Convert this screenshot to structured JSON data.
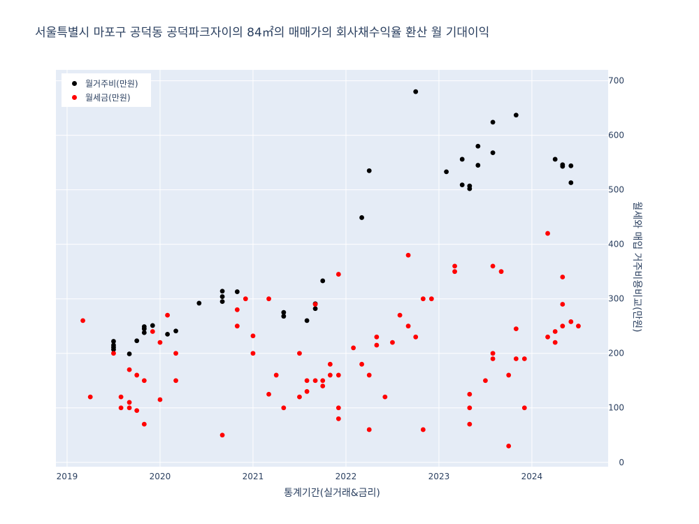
{
  "chart_data": {
    "type": "scatter",
    "title": "서울특별시 마포구 공덕동 공덕파크자이의 84㎡의 매매가의 회사채수익율 환산 월 기대이익",
    "xlabel": "통계기간(실거래&금리)",
    "ylabel": "월세와 매입 거주비용비교(만원)",
    "xlim": [
      2018.88,
      2024.82
    ],
    "ylim": [
      -8,
      720
    ],
    "x_ticks": [
      2019,
      2020,
      2021,
      2022,
      2023,
      2024
    ],
    "x_tick_labels": [
      "2019",
      "2020",
      "2021",
      "2022",
      "2023",
      "2024"
    ],
    "y_ticks": [
      0,
      100,
      200,
      300,
      400,
      500,
      600,
      700
    ],
    "y_tick_labels": [
      "0",
      "100",
      "200",
      "300",
      "400",
      "500",
      "600",
      "700"
    ],
    "legend_position": "top-left",
    "series": [
      {
        "name": "월거주비(만원)",
        "color": "#000000",
        "points": [
          [
            2019.5,
            222
          ],
          [
            2019.5,
            215
          ],
          [
            2019.5,
            211
          ],
          [
            2019.5,
            207
          ],
          [
            2019.67,
            199
          ],
          [
            2019.75,
            223
          ],
          [
            2019.83,
            249
          ],
          [
            2019.83,
            245
          ],
          [
            2019.83,
            238
          ],
          [
            2019.92,
            251
          ],
          [
            2020.08,
            235
          ],
          [
            2020.17,
            241
          ],
          [
            2020.42,
            292
          ],
          [
            2020.67,
            314
          ],
          [
            2020.67,
            304
          ],
          [
            2020.67,
            295
          ],
          [
            2020.83,
            313
          ],
          [
            2021.33,
            275
          ],
          [
            2021.33,
            268
          ],
          [
            2021.58,
            260
          ],
          [
            2021.67,
            291
          ],
          [
            2021.67,
            282
          ],
          [
            2021.75,
            333
          ],
          [
            2022.17,
            449
          ],
          [
            2022.25,
            535
          ],
          [
            2022.75,
            680
          ],
          [
            2023.08,
            533
          ],
          [
            2023.25,
            556
          ],
          [
            2023.25,
            509
          ],
          [
            2023.33,
            507
          ],
          [
            2023.33,
            502
          ],
          [
            2023.42,
            580
          ],
          [
            2023.42,
            545
          ],
          [
            2023.58,
            624
          ],
          [
            2023.58,
            568
          ],
          [
            2023.83,
            637
          ],
          [
            2024.25,
            556
          ],
          [
            2024.33,
            546
          ],
          [
            2024.33,
            543
          ],
          [
            2024.42,
            544
          ],
          [
            2024.42,
            513
          ]
        ]
      },
      {
        "name": "월세금(만원)",
        "color": "#ff0000",
        "points": [
          [
            2019.17,
            260
          ],
          [
            2019.25,
            120
          ],
          [
            2019.5,
            200
          ],
          [
            2019.58,
            120
          ],
          [
            2019.58,
            100
          ],
          [
            2019.67,
            170
          ],
          [
            2019.67,
            110
          ],
          [
            2019.67,
            100
          ],
          [
            2019.75,
            160
          ],
          [
            2019.75,
            95
          ],
          [
            2019.83,
            150
          ],
          [
            2019.83,
            70
          ],
          [
            2019.92,
            240
          ],
          [
            2020.0,
            220
          ],
          [
            2020.0,
            115
          ],
          [
            2020.08,
            270
          ],
          [
            2020.17,
            200
          ],
          [
            2020.17,
            150
          ],
          [
            2020.67,
            50
          ],
          [
            2020.83,
            280
          ],
          [
            2020.83,
            250
          ],
          [
            2020.92,
            300
          ],
          [
            2021.0,
            232
          ],
          [
            2021.0,
            200
          ],
          [
            2021.17,
            300
          ],
          [
            2021.17,
            125
          ],
          [
            2021.25,
            160
          ],
          [
            2021.33,
            100
          ],
          [
            2021.5,
            200
          ],
          [
            2021.5,
            120
          ],
          [
            2021.58,
            150
          ],
          [
            2021.58,
            130
          ],
          [
            2021.67,
            290
          ],
          [
            2021.67,
            150
          ],
          [
            2021.75,
            150
          ],
          [
            2021.75,
            140
          ],
          [
            2021.83,
            180
          ],
          [
            2021.83,
            160
          ],
          [
            2021.92,
            345
          ],
          [
            2021.92,
            160
          ],
          [
            2021.92,
            100
          ],
          [
            2021.92,
            80
          ],
          [
            2022.08,
            210
          ],
          [
            2022.17,
            180
          ],
          [
            2022.25,
            160
          ],
          [
            2022.25,
            60
          ],
          [
            2022.33,
            230
          ],
          [
            2022.33,
            215
          ],
          [
            2022.42,
            120
          ],
          [
            2022.5,
            220
          ],
          [
            2022.58,
            270
          ],
          [
            2022.67,
            380
          ],
          [
            2022.67,
            250
          ],
          [
            2022.75,
            230
          ],
          [
            2022.83,
            300
          ],
          [
            2022.83,
            60
          ],
          [
            2022.92,
            300
          ],
          [
            2023.17,
            360
          ],
          [
            2023.17,
            350
          ],
          [
            2023.33,
            125
          ],
          [
            2023.33,
            100
          ],
          [
            2023.33,
            70
          ],
          [
            2023.5,
            150
          ],
          [
            2023.58,
            360
          ],
          [
            2023.58,
            200
          ],
          [
            2023.58,
            190
          ],
          [
            2023.67,
            350
          ],
          [
            2023.75,
            160
          ],
          [
            2023.75,
            30
          ],
          [
            2023.83,
            245
          ],
          [
            2023.83,
            190
          ],
          [
            2023.92,
            190
          ],
          [
            2023.92,
            100
          ],
          [
            2024.17,
            420
          ],
          [
            2024.17,
            230
          ],
          [
            2024.25,
            240
          ],
          [
            2024.25,
            220
          ],
          [
            2024.33,
            340
          ],
          [
            2024.33,
            290
          ],
          [
            2024.33,
            250
          ],
          [
            2024.42,
            258
          ],
          [
            2024.5,
            250
          ]
        ]
      }
    ]
  }
}
